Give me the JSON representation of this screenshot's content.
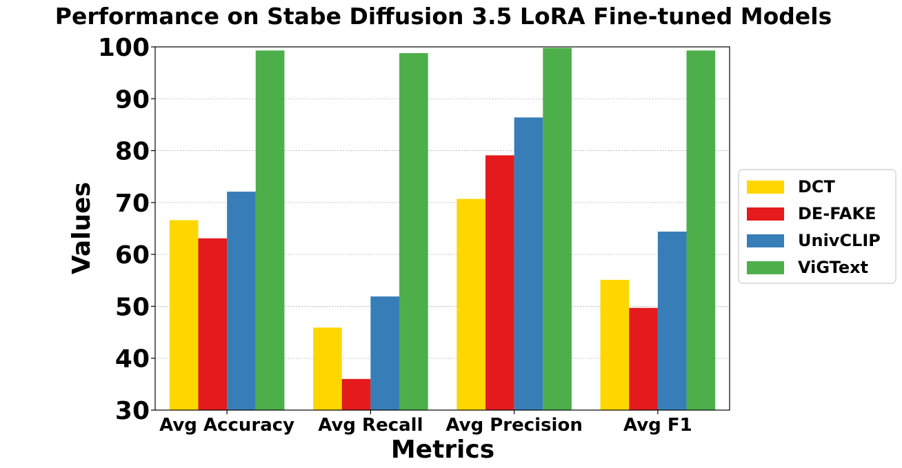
{
  "chart_data": {
    "type": "bar",
    "title": "Performance on Stabe Diffusion 3.5 LoRA Fine-tuned Models",
    "xlabel": "Metrics",
    "ylabel": "Values",
    "ylim": [
      30,
      100
    ],
    "yticks": [
      30,
      40,
      50,
      60,
      70,
      80,
      90,
      100
    ],
    "grid": true,
    "legend_position": "center-right, outside plot",
    "categories": [
      "Avg Accuracy",
      "Avg Recall",
      "Avg Precision",
      "Avg F1"
    ],
    "series": [
      {
        "name": "DCT",
        "color": "#FFD700",
        "values": [
          66.6,
          45.9,
          70.7,
          55.1
        ]
      },
      {
        "name": "DE-FAKE",
        "color": "#E41A1C",
        "values": [
          63.1,
          36.0,
          79.1,
          49.7
        ]
      },
      {
        "name": "UnivCLIP",
        "color": "#377EB8",
        "values": [
          72.1,
          51.9,
          86.4,
          64.4
        ]
      },
      {
        "name": "ViGText",
        "color": "#4DAF4A",
        "values": [
          99.3,
          98.8,
          99.8,
          99.3
        ]
      }
    ]
  }
}
